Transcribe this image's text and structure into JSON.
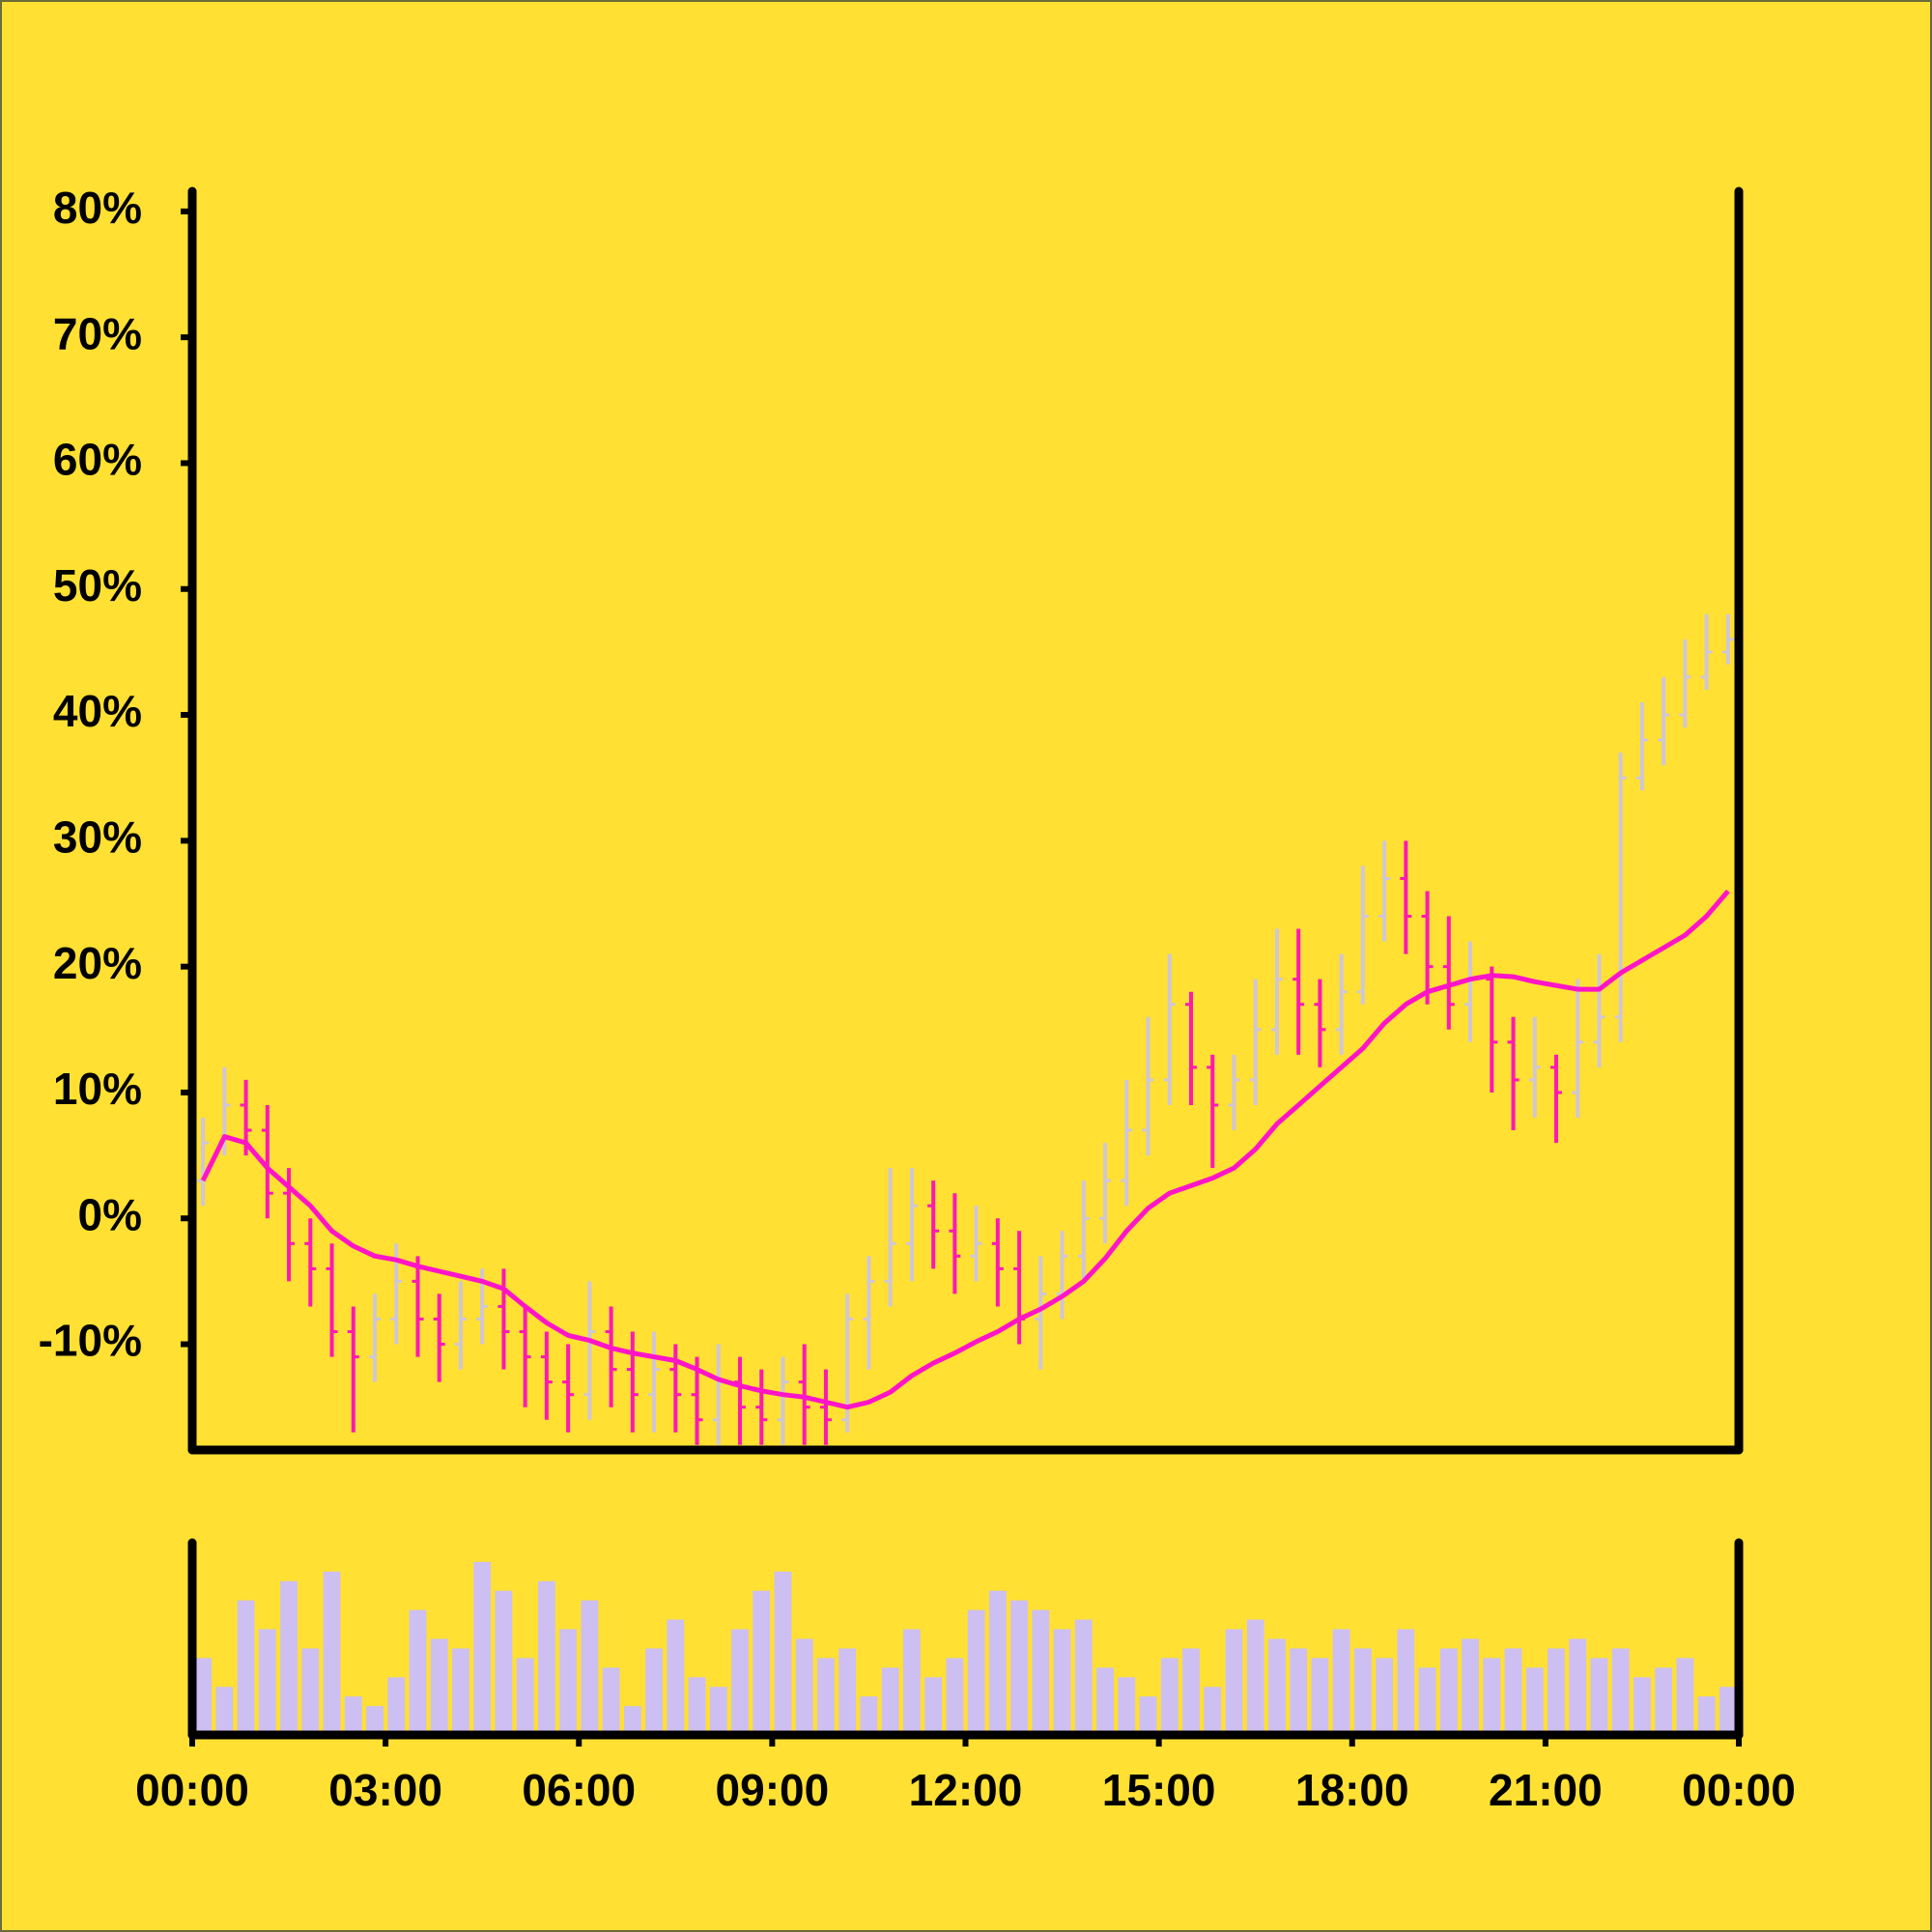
{
  "chart_data": {
    "type": "ohlc",
    "x": [
      "00:00",
      "00:20",
      "00:40",
      "01:00",
      "01:20",
      "01:40",
      "02:00",
      "02:20",
      "02:40",
      "03:00",
      "03:20",
      "03:40",
      "04:00",
      "04:20",
      "04:40",
      "05:00",
      "05:20",
      "05:40",
      "06:00",
      "06:20",
      "06:40",
      "07:00",
      "07:20",
      "07:40",
      "08:00",
      "08:20",
      "08:40",
      "09:00",
      "09:20",
      "09:40",
      "10:00",
      "10:20",
      "10:40",
      "11:00",
      "11:20",
      "11:40",
      "12:00",
      "12:20",
      "12:40",
      "13:00",
      "13:20",
      "13:40",
      "14:00",
      "14:20",
      "14:40",
      "15:00",
      "15:20",
      "15:40",
      "16:00",
      "16:20",
      "16:40",
      "17:00",
      "17:20",
      "17:40",
      "18:00",
      "18:20",
      "18:40",
      "19:00",
      "19:20",
      "19:40",
      "20:00",
      "20:20",
      "20:40",
      "21:00",
      "21:20",
      "21:40",
      "22:00",
      "22:20",
      "22:40",
      "23:00",
      "23:20",
      "23:40"
    ],
    "open": [
      3,
      6,
      9,
      7,
      2,
      -2,
      -4,
      -9,
      -11,
      -8,
      -5,
      -8,
      -10,
      -8,
      -7,
      -9,
      -11,
      -13,
      -14,
      -9,
      -12,
      -14,
      -12,
      -14,
      -16,
      -13,
      -15,
      -16,
      -13,
      -15,
      -16,
      -8,
      -5,
      -2,
      1,
      -1,
      -3,
      -2,
      -4,
      -8,
      -6,
      -3,
      0,
      3,
      7,
      11,
      17,
      12,
      9,
      11,
      15,
      19,
      17,
      15,
      18,
      24,
      27,
      24,
      20,
      17,
      19,
      14,
      11,
      12,
      10,
      14,
      16,
      35,
      38,
      40,
      43,
      45
    ],
    "high": [
      8,
      12,
      11,
      9,
      4,
      0,
      -2,
      -7,
      -6,
      -2,
      -3,
      -6,
      -5,
      -4,
      -4,
      -7,
      -9,
      -10,
      -5,
      -7,
      -9,
      -9,
      -10,
      -11,
      -10,
      -11,
      -12,
      -11,
      -10,
      -12,
      -6,
      -3,
      4,
      4,
      3,
      2,
      1,
      0,
      -1,
      -3,
      -1,
      3,
      6,
      11,
      16,
      21,
      18,
      13,
      13,
      19,
      23,
      23,
      19,
      21,
      28,
      30,
      30,
      26,
      24,
      22,
      20,
      16,
      16,
      13,
      19,
      21,
      37,
      41,
      43,
      46,
      48,
      48
    ],
    "low": [
      1,
      5,
      5,
      0,
      -5,
      -7,
      -11,
      -17,
      -13,
      -10,
      -11,
      -13,
      -12,
      -10,
      -12,
      -15,
      -16,
      -17,
      -16,
      -15,
      -17,
      -17,
      -17,
      -18,
      -18,
      -18,
      -18,
      -18,
      -18,
      -18,
      -17,
      -12,
      -7,
      -5,
      -4,
      -6,
      -5,
      -7,
      -10,
      -12,
      -8,
      -5,
      -2,
      1,
      5,
      9,
      9,
      4,
      7,
      9,
      13,
      13,
      12,
      13,
      17,
      22,
      21,
      17,
      15,
      14,
      10,
      7,
      8,
      6,
      8,
      12,
      14,
      34,
      36,
      39,
      42,
      44
    ],
    "close": [
      6,
      9,
      7,
      2,
      -2,
      -4,
      -9,
      -11,
      -8,
      -5,
      -8,
      -10,
      -8,
      -7,
      -9,
      -11,
      -13,
      -14,
      -9,
      -12,
      -14,
      -12,
      -14,
      -16,
      -13,
      -15,
      -16,
      -13,
      -15,
      -16,
      -8,
      -5,
      -2,
      1,
      -1,
      -3,
      -2,
      -4,
      -8,
      -6,
      -3,
      0,
      3,
      7,
      11,
      17,
      12,
      9,
      11,
      15,
      19,
      17,
      15,
      18,
      24,
      27,
      24,
      20,
      17,
      19,
      14,
      11,
      12,
      10,
      14,
      16,
      35,
      38,
      40,
      43,
      45,
      46
    ],
    "ma": [
      3,
      6.5,
      6,
      4,
      2.5,
      1,
      -1,
      -2.2,
      -3,
      -3.3,
      -3.8,
      -4.2,
      -4.6,
      -5,
      -5.6,
      -7,
      -8.3,
      -9.3,
      -9.7,
      -10.3,
      -10.7,
      -11,
      -11.3,
      -12,
      -12.8,
      -13.3,
      -13.7,
      -14,
      -14.2,
      -14.6,
      -15,
      -14.6,
      -13.8,
      -12.5,
      -11.5,
      -10.7,
      -9.8,
      -9,
      -8,
      -7.2,
      -6.2,
      -5,
      -3.2,
      -1,
      0.8,
      2,
      2.6,
      3.2,
      4,
      5.5,
      7.5,
      9,
      10.5,
      12,
      13.5,
      15.5,
      17,
      18,
      18.5,
      19,
      19.3,
      19.2,
      18.8,
      18.5,
      18.2,
      18.2,
      19.5,
      20.5,
      21.5,
      22.5,
      24,
      26
    ],
    "volume": [
      40,
      25,
      70,
      55,
      80,
      45,
      85,
      20,
      15,
      30,
      65,
      50,
      45,
      90,
      75,
      40,
      80,
      55,
      70,
      35,
      15,
      45,
      60,
      30,
      25,
      55,
      75,
      85,
      50,
      40,
      45,
      20,
      35,
      55,
      30,
      40,
      65,
      75,
      70,
      65,
      55,
      60,
      35,
      30,
      20,
      40,
      45,
      25,
      55,
      60,
      50,
      45,
      40,
      55,
      45,
      40,
      55,
      35,
      45,
      50,
      40,
      45,
      35,
      45,
      50,
      40,
      45,
      30,
      35,
      40,
      20,
      25
    ],
    "up_color": "#cfc6d8",
    "down_color": "#ff18b4",
    "ma_color": "#ff14c8",
    "volume_color": "#cdbff2",
    "xlim": [
      0,
      24
    ],
    "xticks": [
      {
        "value": 0,
        "label": "00:00"
      },
      {
        "value": 3,
        "label": "03:00"
      },
      {
        "value": 6,
        "label": "06:00"
      },
      {
        "value": 9,
        "label": "09:00"
      },
      {
        "value": 12,
        "label": "12:00"
      },
      {
        "value": 15,
        "label": "15:00"
      },
      {
        "value": 18,
        "label": "18:00"
      },
      {
        "value": 21,
        "label": "21:00"
      },
      {
        "value": 24,
        "label": "00:00"
      }
    ],
    "ylim": [
      -18.4,
      81.6
    ],
    "yticks": [
      {
        "value": -10,
        "label": "-10%"
      },
      {
        "value": 0,
        "label": "0%"
      },
      {
        "value": 10,
        "label": "10%"
      },
      {
        "value": 20,
        "label": "20%"
      },
      {
        "value": 30,
        "label": "30%"
      },
      {
        "value": 40,
        "label": "40%"
      },
      {
        "value": 50,
        "label": "50%"
      },
      {
        "value": 60,
        "label": "60%"
      },
      {
        "value": 70,
        "label": "70%"
      },
      {
        "value": 80,
        "label": "80%"
      }
    ],
    "y2lim": [
      0,
      100
    ]
  }
}
